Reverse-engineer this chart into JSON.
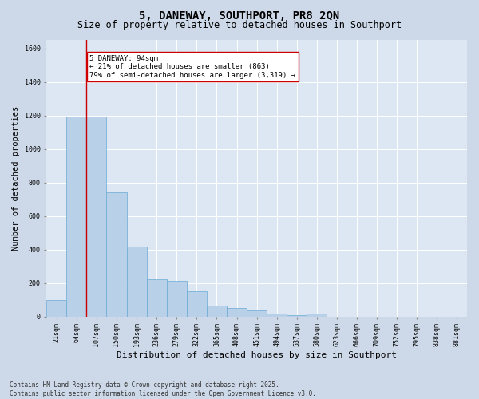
{
  "title": "5, DANEWAY, SOUTHPORT, PR8 2QN",
  "subtitle": "Size of property relative to detached houses in Southport",
  "xlabel": "Distribution of detached houses by size in Southport",
  "ylabel": "Number of detached properties",
  "footer_line1": "Contains HM Land Registry data © Crown copyright and database right 2025.",
  "footer_line2": "Contains public sector information licensed under the Open Government Licence v3.0.",
  "categories": [
    "21sqm",
    "64sqm",
    "107sqm",
    "150sqm",
    "193sqm",
    "236sqm",
    "279sqm",
    "322sqm",
    "365sqm",
    "408sqm",
    "451sqm",
    "494sqm",
    "537sqm",
    "580sqm",
    "623sqm",
    "666sqm",
    "709sqm",
    "752sqm",
    "795sqm",
    "838sqm",
    "881sqm"
  ],
  "bar_heights": [
    100,
    1195,
    1195,
    740,
    420,
    225,
    215,
    150,
    68,
    50,
    35,
    18,
    10,
    18,
    0,
    0,
    0,
    0,
    0,
    0,
    0
  ],
  "bar_color": "#b8d0e8",
  "bar_edge_color": "#6aaad4",
  "property_line_color": "#cc0000",
  "annotation_text": "5 DANEWAY: 94sqm\n← 21% of detached houses are smaller (863)\n79% of semi-detached houses are larger (3,319) →",
  "annotation_box_color": "#cc0000",
  "ylim": [
    0,
    1650
  ],
  "fig_bg_color": "#cdd9e8",
  "plot_bg_color": "#dce7f3",
  "grid_color": "#ffffff",
  "title_fontsize": 10,
  "subtitle_fontsize": 8.5,
  "ylabel_fontsize": 7.5,
  "xlabel_fontsize": 8,
  "tick_fontsize": 6,
  "annot_fontsize": 6.5,
  "footer_fontsize": 5.5
}
